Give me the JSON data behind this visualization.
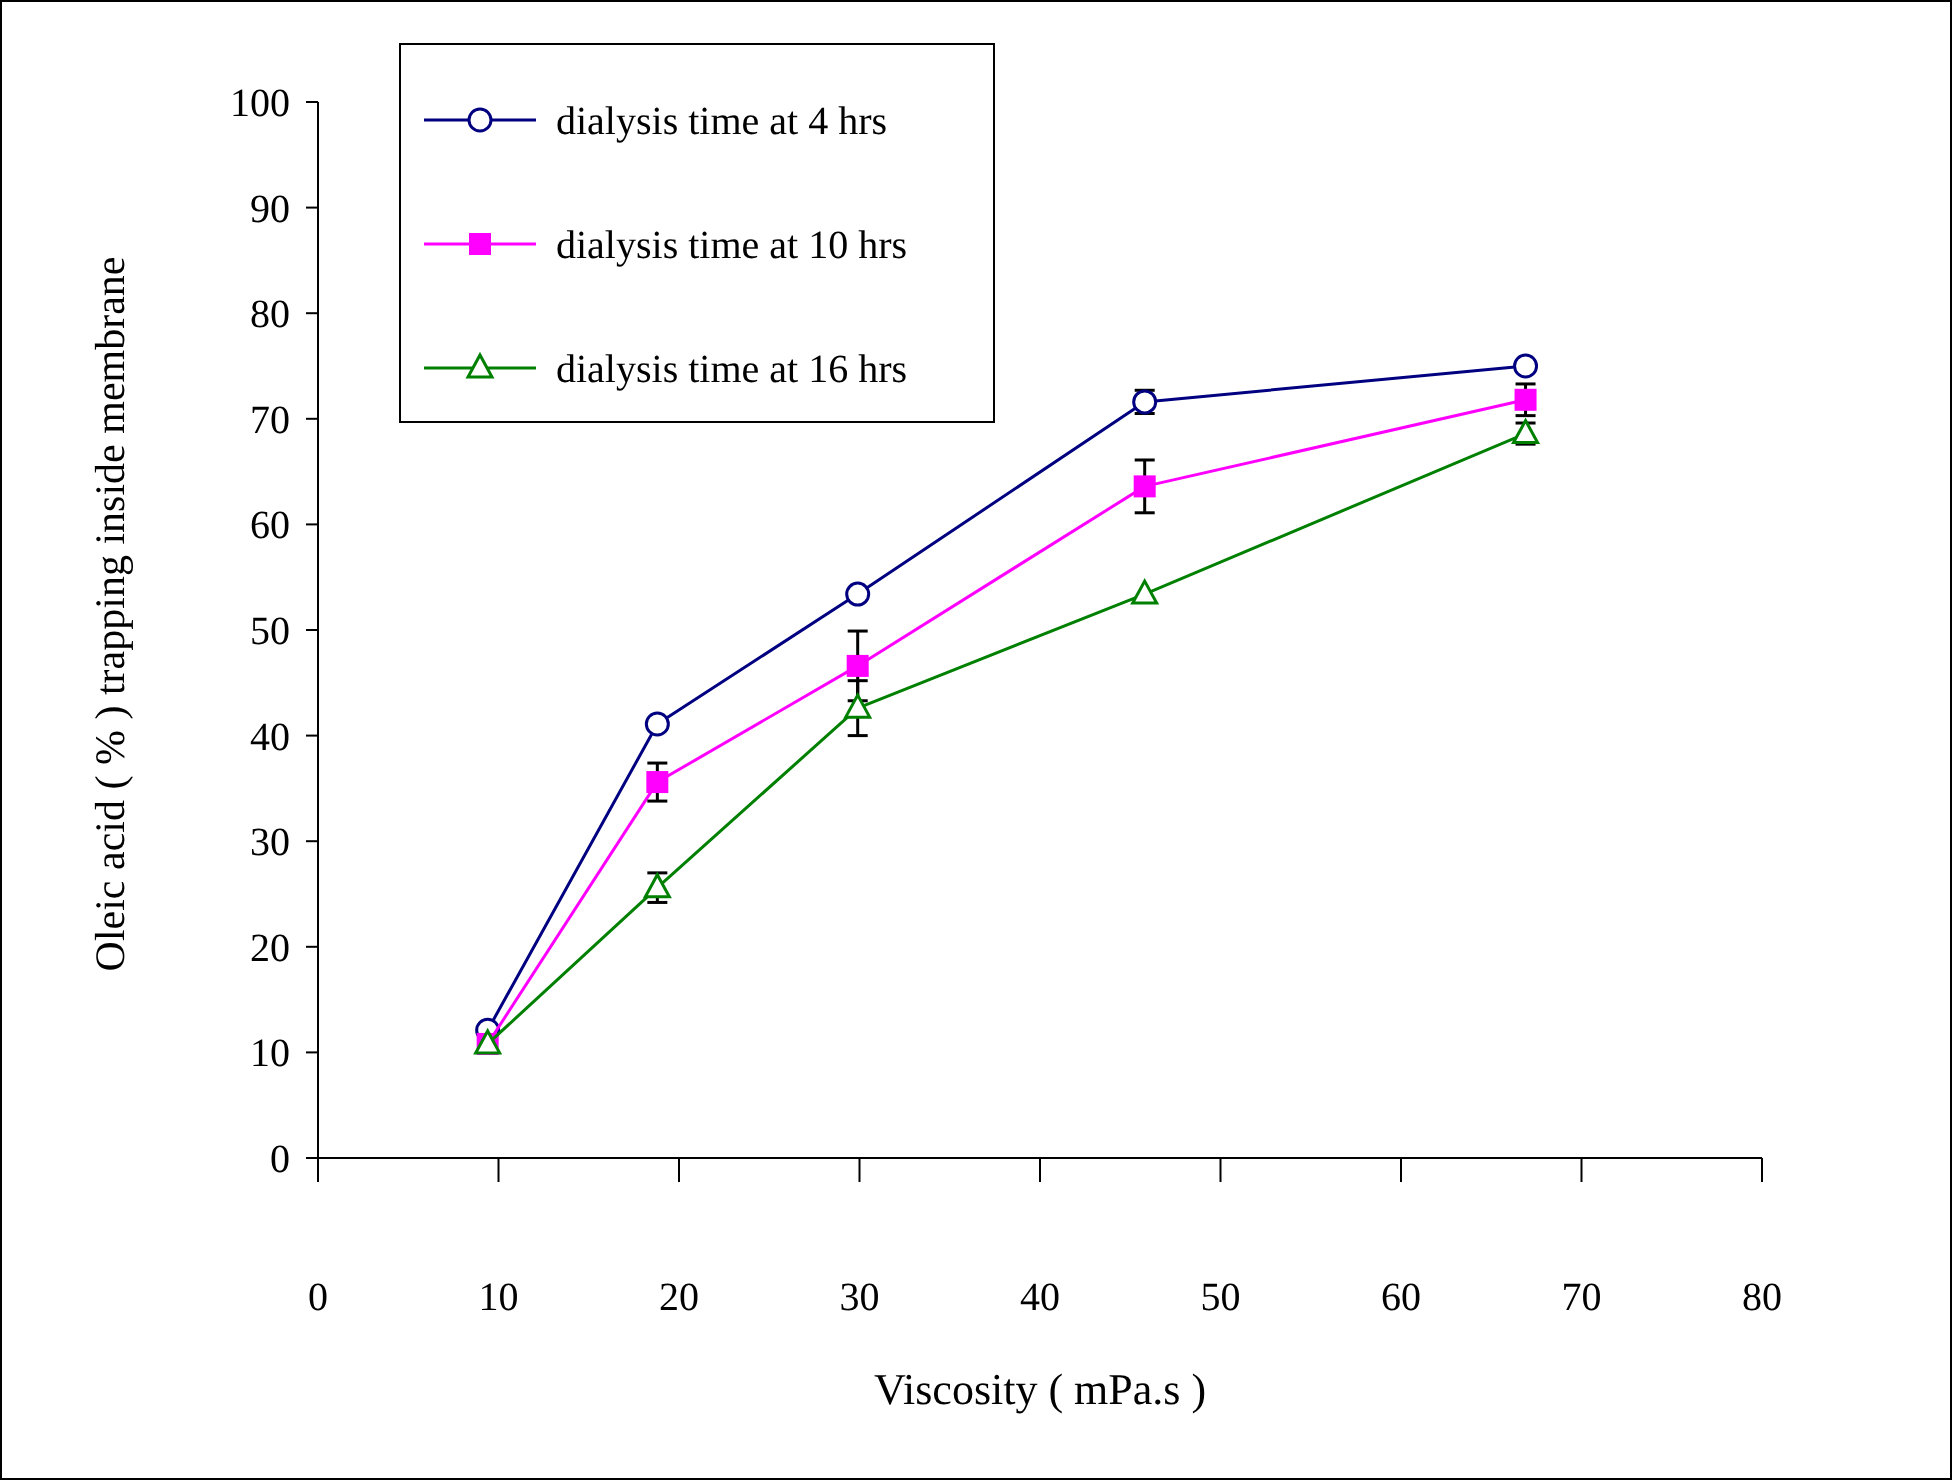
{
  "chart_data": {
    "type": "line",
    "xlabel": "Viscosity ( mPa.s )",
    "ylabel": "Oleic acid ( % ) trapping inside membrane",
    "xlim": [
      0,
      80
    ],
    "xticks": [
      0,
      10,
      20,
      30,
      40,
      50,
      60,
      70,
      80
    ],
    "ylim": [
      0,
      100
    ],
    "yticks": [
      0,
      10,
      20,
      30,
      40,
      50,
      60,
      70,
      80,
      90,
      100
    ],
    "legend": "top left",
    "line_style": "solid",
    "series": [
      {
        "name": "dialysis time at 4 hrs",
        "color": "#000080",
        "marker": "circle",
        "x": [
          9.4,
          18.8,
          29.9,
          45.8,
          66.9
        ],
        "values": [
          12.1,
          41.1,
          53.4,
          71.6,
          75.0
        ],
        "errors": [
          null,
          null,
          null,
          1.1,
          null
        ]
      },
      {
        "name": "dialysis time at 10 hrs",
        "color": "#ff00ff",
        "marker": "square",
        "x": [
          9.4,
          18.8,
          29.9,
          45.8,
          66.9
        ],
        "values": [
          10.8,
          35.6,
          46.6,
          63.6,
          71.8
        ],
        "errors": [
          null,
          1.8,
          3.3,
          2.5,
          1.5
        ]
      },
      {
        "name": "dialysis time at 16 hrs",
        "color": "#008000",
        "marker": "triangle",
        "x": [
          9.4,
          18.8,
          29.9,
          45.8,
          66.9
        ],
        "values": [
          10.8,
          25.6,
          42.6,
          53.4,
          68.6
        ],
        "errors": [
          null,
          1.4,
          2.6,
          null,
          1.0
        ]
      }
    ]
  }
}
